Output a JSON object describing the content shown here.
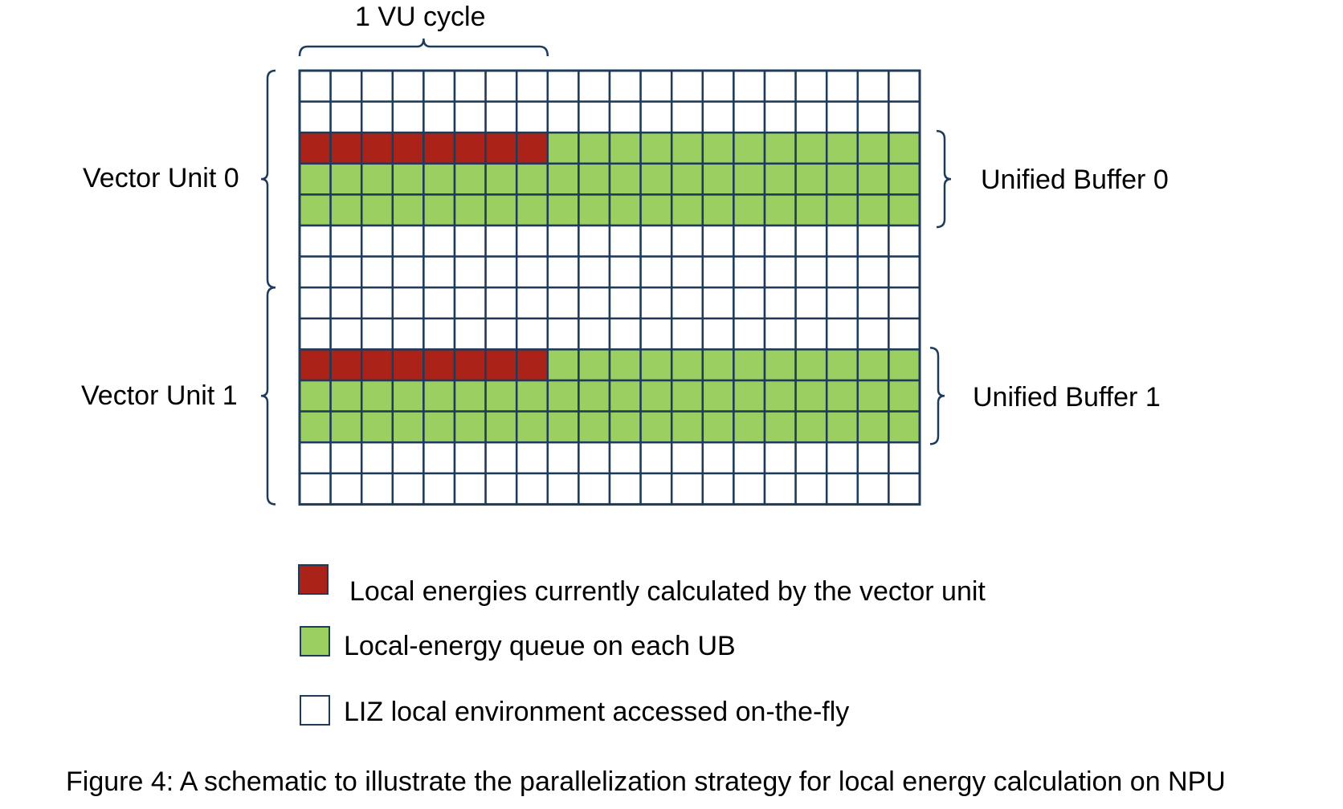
{
  "labels": {
    "top_brace": "1 VU cycle",
    "vector_unit_0": "Vector Unit 0",
    "vector_unit_1": "Vector Unit 1",
    "unified_buffer_0": "Unified Buffer 0",
    "unified_buffer_1": "Unified Buffer 1"
  },
  "grid": {
    "columns": 20,
    "rows": 14,
    "cycle_columns": 8,
    "red_rows": [
      2,
      9
    ],
    "green_rows": [
      2,
      3,
      4,
      9,
      10,
      11
    ]
  },
  "legend": [
    {
      "label": "Local energies currently calculated by the vector unit",
      "color": "#ab2318"
    },
    {
      "label": "Local-energy queue on each UB",
      "color": "#9bcf61"
    },
    {
      "label": "LIZ local environment accessed on-the-fly",
      "color": "#ffffff"
    }
  ],
  "colors": {
    "grid_line": "#1f3b5a",
    "red": "#ab2318",
    "green": "#9bcf61"
  },
  "caption": "Figure 4: A schematic to illustrate the parallelization strategy for local energy calculation on NPU"
}
